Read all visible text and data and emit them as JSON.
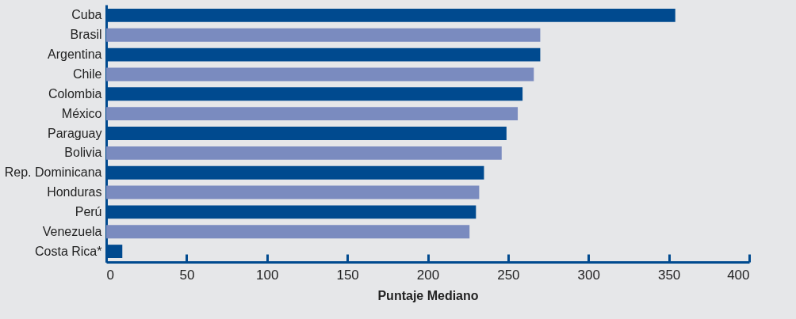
{
  "chart_data": {
    "type": "bar",
    "orientation": "horizontal",
    "xlabel": "Puntaje Mediano",
    "categories": [
      "Cuba",
      "Brasil",
      "Argentina",
      "Chile",
      "Colombia",
      "México",
      "Paraguay",
      "Bolivia",
      "Rep. Dominicana",
      "Honduras",
      "Perú",
      "Venezuela",
      "Costa Rica*"
    ],
    "values": [
      354,
      270,
      270,
      266,
      259,
      256,
      249,
      246,
      235,
      232,
      230,
      226,
      10
    ],
    "colors": [
      "#004a8f",
      "#7a8bbf",
      "#004a8f",
      "#7a8bbf",
      "#004a8f",
      "#7a8bbf",
      "#004a8f",
      "#7a8bbf",
      "#004a8f",
      "#7a8bbf",
      "#004a8f",
      "#7a8bbf",
      "#004a8f"
    ],
    "xlim": [
      0,
      400
    ],
    "xticks": [
      0,
      50,
      100,
      150,
      200,
      250,
      300,
      350,
      400
    ]
  }
}
